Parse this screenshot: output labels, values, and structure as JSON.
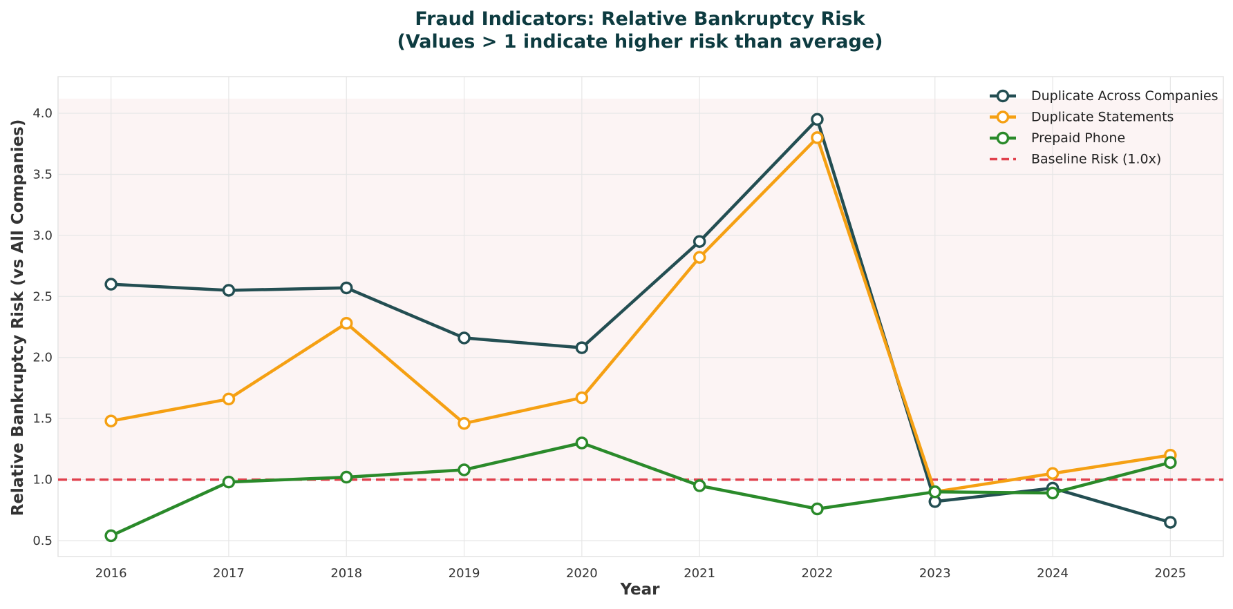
{
  "chart_data": {
    "type": "line",
    "title_lines": [
      "Fraud Indicators: Relative Bankruptcy Risk",
      "(Values > 1 indicate higher risk than average)"
    ],
    "xlabel": "Year",
    "ylabel": "Relative Bankruptcy Risk (vs All Companies)",
    "x": [
      "2016",
      "2017",
      "2018",
      "2019",
      "2020",
      "2021",
      "2022",
      "2023",
      "2024",
      "2025"
    ],
    "xlim": [
      -0.45,
      9.45
    ],
    "ylim": [
      0.37,
      4.3
    ],
    "yticks": [
      0.5,
      1.0,
      1.5,
      2.0,
      2.5,
      3.0,
      3.5,
      4.0
    ],
    "ytick_labels": [
      "0.5",
      "1.0",
      "1.5",
      "2.0",
      "2.5",
      "3.0",
      "3.5",
      "4.0"
    ],
    "grid": true,
    "legend_position": "top-right",
    "shaded_region": {
      "from": 1.0,
      "to": 4.12,
      "color": "#fcf4f4"
    },
    "baseline": {
      "name": "Baseline Risk (1.0x)",
      "value": 1.0,
      "color": "#e0404c",
      "style": "dashed"
    },
    "series": [
      {
        "name": "Duplicate Across Companies",
        "color": "#234e52",
        "values": [
          2.6,
          2.55,
          2.57,
          2.16,
          2.08,
          2.95,
          3.95,
          0.82,
          0.93,
          0.65
        ]
      },
      {
        "name": "Duplicate Statements",
        "color": "#f5a013",
        "values": [
          1.48,
          1.66,
          2.28,
          1.46,
          1.67,
          2.82,
          3.8,
          0.9,
          1.05,
          1.2
        ]
      },
      {
        "name": "Prepaid Phone",
        "color": "#2a8a2a",
        "values": [
          0.54,
          0.98,
          1.02,
          1.08,
          1.3,
          0.95,
          0.76,
          0.9,
          0.89,
          1.14
        ]
      }
    ],
    "title_color": "#0d3b40"
  }
}
